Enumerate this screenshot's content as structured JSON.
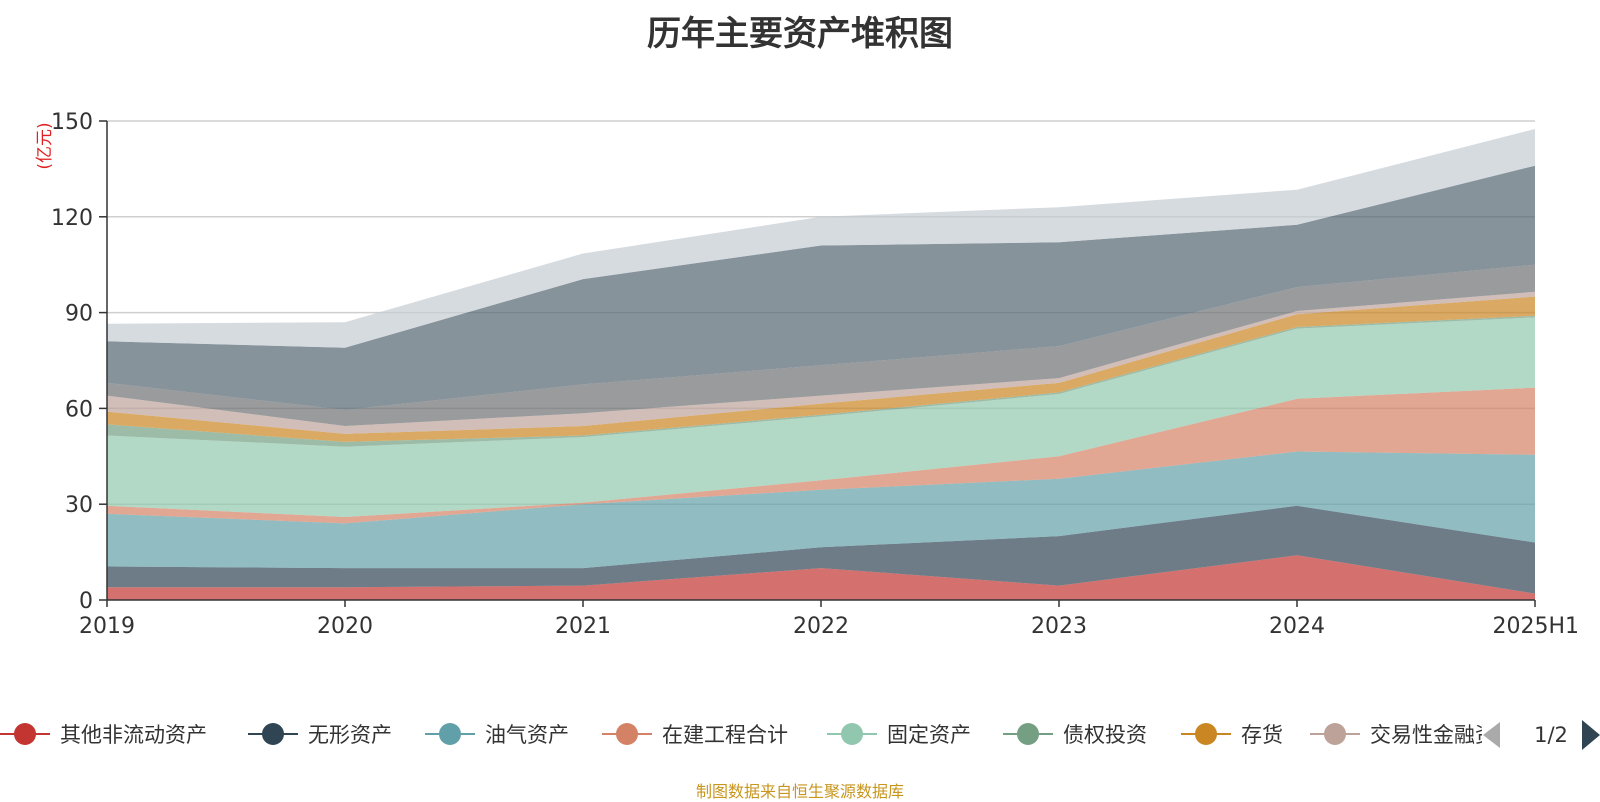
{
  "title": "历年主要资产堆积图",
  "source_note": "制图数据来自恒生聚源数据库",
  "legend_page": "1/2",
  "chart_data": {
    "type": "area",
    "stacked": true,
    "title": "历年主要资产堆积图",
    "ylabel": "(亿元)",
    "xlabel": "",
    "categories": [
      "2019",
      "2020",
      "2021",
      "2022",
      "2023",
      "2024",
      "2025H1"
    ],
    "ylim": [
      0,
      150
    ],
    "yticks": [
      0,
      30,
      60,
      90,
      120,
      150
    ],
    "grid": true,
    "legend_position": "bottom",
    "series": [
      {
        "name": "其他非流动资产",
        "color": "#c23531",
        "values": [
          4,
          4,
          4.5,
          10,
          4.5,
          14,
          2
        ]
      },
      {
        "name": "无形资产",
        "color": "#2f4554",
        "values": [
          6.5,
          6,
          5.5,
          6.5,
          15.5,
          15.5,
          16
        ]
      },
      {
        "name": "油气资产",
        "color": "#61a0a8",
        "values": [
          16.5,
          14,
          20,
          18,
          18,
          17,
          27.5
        ]
      },
      {
        "name": "在建工程合计",
        "color": "#d48265",
        "values": [
          2.5,
          2,
          0.5,
          3,
          7,
          16.5,
          21
        ]
      },
      {
        "name": "固定资产",
        "color": "#91c7ae",
        "values": [
          22,
          22,
          20.5,
          20,
          19.5,
          22,
          22
        ]
      },
      {
        "name": "债权投资",
        "color": "#749f83",
        "values": [
          3.5,
          1.5,
          0.5,
          0.5,
          0.5,
          0.5,
          0.5
        ]
      },
      {
        "name": "存货",
        "color": "#ca8622",
        "values": [
          4,
          2.5,
          3,
          3.5,
          3,
          4,
          6
        ]
      },
      {
        "name": "交易性金融资产",
        "color": "#bda29a",
        "values": [
          5,
          2.5,
          4,
          2.5,
          1.5,
          1,
          1.5
        ]
      },
      {
        "name": "",
        "color": "#6e7074",
        "values": [
          4,
          5,
          9,
          9.5,
          10,
          7.5,
          8.5
        ]
      },
      {
        "name": "",
        "color": "#546570",
        "values": [
          13,
          19.5,
          33,
          37.5,
          32.5,
          19.5,
          31
        ]
      },
      {
        "name": "",
        "color": "#c4ccd3",
        "values": [
          5.5,
          8,
          8,
          9,
          11,
          11,
          11.5
        ]
      }
    ]
  }
}
